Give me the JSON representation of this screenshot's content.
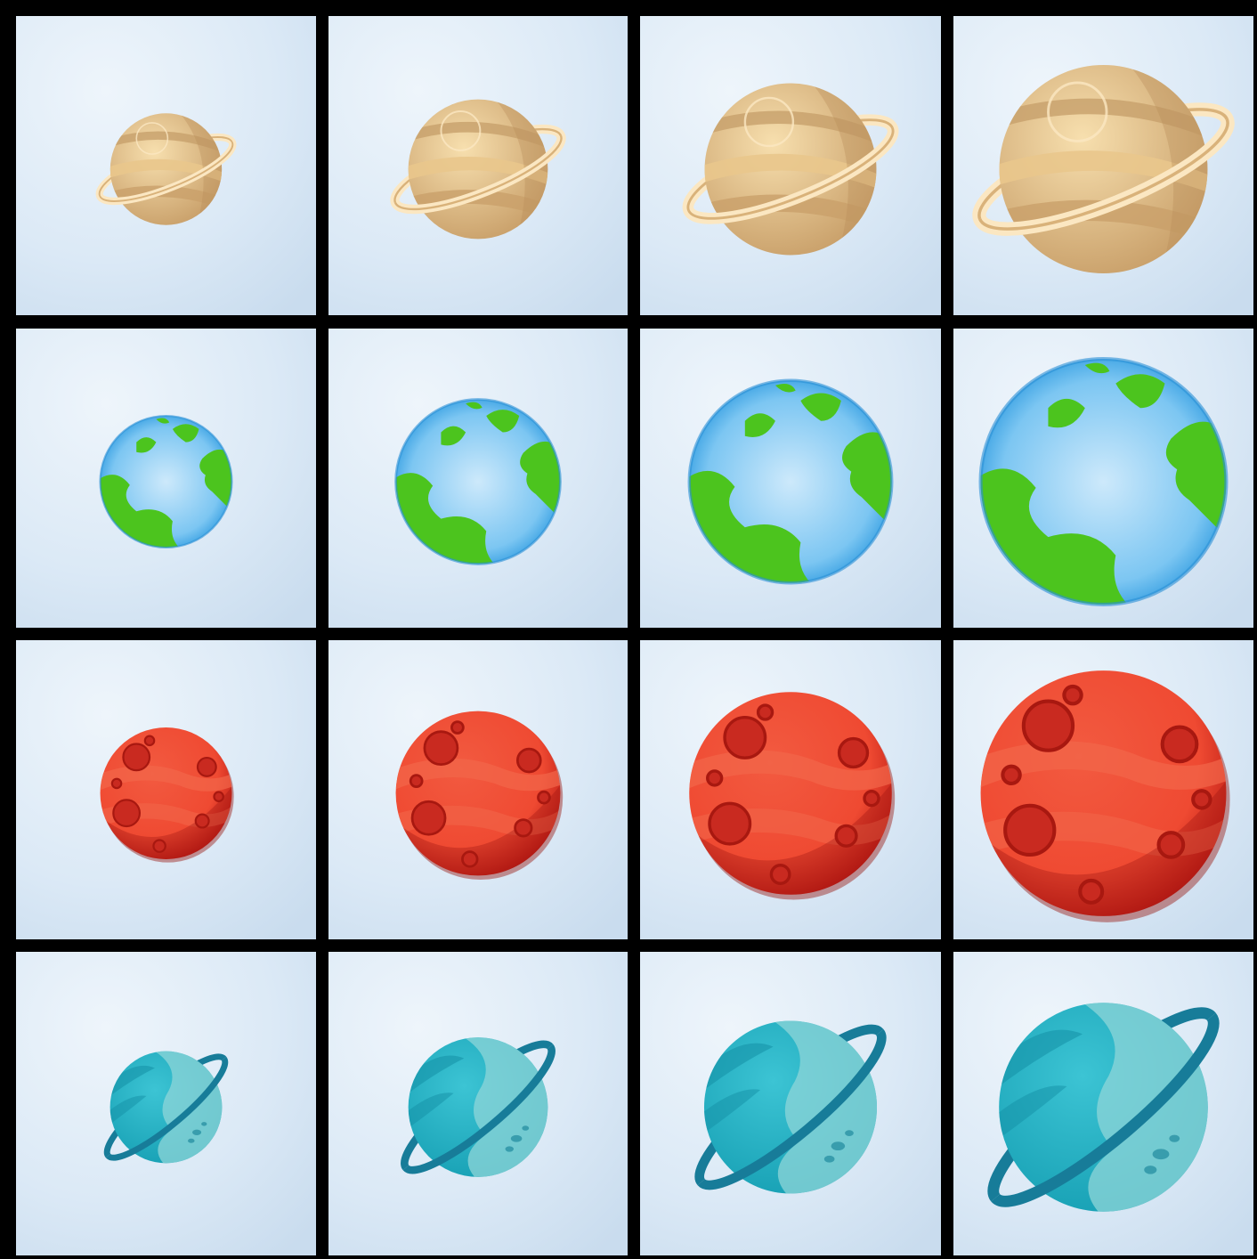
{
  "colors": {
    "border": "#000000",
    "cell_background": "#dbe9f6",
    "cell_background_light": "#eef5fb",
    "saturn_light": "#f5d9a0",
    "saturn_dark": "#c9a06a",
    "earth_ocean": "#7cc6f2",
    "earth_land": "#4cc41e",
    "mars_light": "#ef4a32",
    "mars_dark": "#b81812",
    "uranus_body": "#25b3c6",
    "uranus_ring": "#177c99"
  },
  "grid": {
    "rows": [
      {
        "planet": "saturn",
        "cells": [
          {
            "icon": "saturn-icon",
            "size": 1
          },
          {
            "icon": "saturn-icon",
            "size": 2
          },
          {
            "icon": "saturn-icon",
            "size": 3
          },
          {
            "icon": "saturn-icon",
            "size": 4
          }
        ]
      },
      {
        "planet": "earth",
        "cells": [
          {
            "icon": "earth-icon",
            "size": 1
          },
          {
            "icon": "earth-icon",
            "size": 2
          },
          {
            "icon": "earth-icon",
            "size": 3
          },
          {
            "icon": "earth-icon",
            "size": 4
          }
        ]
      },
      {
        "planet": "mars",
        "cells": [
          {
            "icon": "mars-icon",
            "size": 1
          },
          {
            "icon": "mars-icon",
            "size": 2
          },
          {
            "icon": "mars-icon",
            "size": 3
          },
          {
            "icon": "mars-icon",
            "size": 4
          }
        ]
      },
      {
        "planet": "uranus",
        "cells": [
          {
            "icon": "uranus-icon",
            "size": 1
          },
          {
            "icon": "uranus-icon",
            "size": 2
          },
          {
            "icon": "uranus-icon",
            "size": 3
          },
          {
            "icon": "uranus-icon",
            "size": 4
          }
        ]
      }
    ]
  }
}
